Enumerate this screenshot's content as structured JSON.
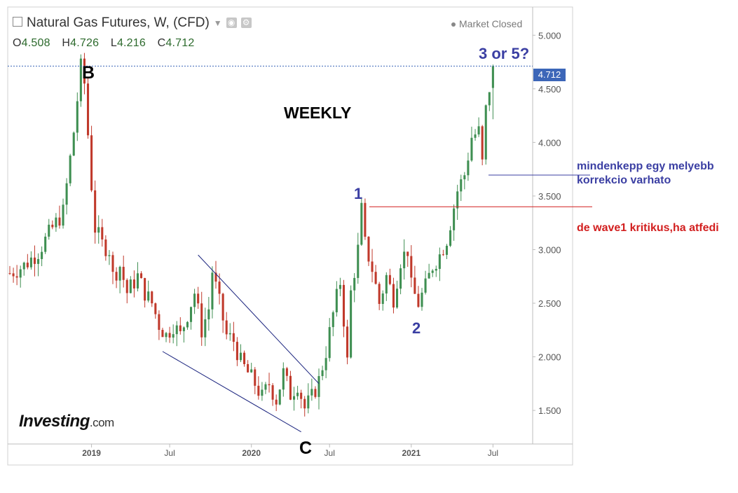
{
  "header": {
    "title": "Natural Gas Futures, W, (CFD)",
    "ohlc": [
      {
        "label": "O",
        "value": "4.508"
      },
      {
        "label": "H",
        "value": "4.726"
      },
      {
        "label": "L",
        "value": "4.216"
      },
      {
        "label": "C",
        "value": "4.712"
      }
    ],
    "market_status": "Market Closed",
    "icons": [
      "square-icon",
      "chevron-down-icon",
      "eye-icon",
      "gear-icon"
    ]
  },
  "brand": {
    "name": "Investing",
    "suffix": ".com"
  },
  "last_price_tag": "4.712",
  "annotations": {
    "weekly": "WEEKLY",
    "b": "B",
    "c": "C",
    "wave1": "1",
    "wave2": "2",
    "wave3or5": "3 or 5?",
    "note_blue_line1": "mindenkepp egy melyebb",
    "note_blue_line2": "korrekcio varhato",
    "note_red": "de wave1 kritikus,ha atfedi"
  },
  "colors": {
    "up": "#3f8f52",
    "down": "#c0392b",
    "last_price_line": "#3c66b8",
    "annotation_blue": "#3b3fa3",
    "annotation_red": "#d21f1f",
    "axis_text": "#555555"
  },
  "chart_data": {
    "type": "candlestick",
    "title": "Natural Gas Futures, W, (CFD)",
    "interval": "weekly",
    "x_tick_labels": [
      "2019",
      "Jul",
      "2020",
      "Jul",
      "2021",
      "Jul"
    ],
    "y_tick_labels": [
      "1.500",
      "2.000",
      "2.500",
      "3.000",
      "3.500",
      "4.000",
      "4.500",
      "5.000"
    ],
    "ylim": [
      1.2,
      5.25
    ],
    "xlim": [
      0,
      145
    ],
    "last_price": 4.712,
    "ohlc_last": {
      "open": 4.508,
      "high": 4.726,
      "low": 4.216,
      "close": 4.712
    },
    "close_path": [
      [
        0,
        2.78
      ],
      [
        4,
        2.85
      ],
      [
        8,
        2.98
      ],
      [
        12,
        3.2
      ],
      [
        15,
        3.35
      ],
      [
        18,
        4.1
      ],
      [
        20,
        4.7
      ],
      [
        21,
        4.55
      ],
      [
        23,
        3.6
      ],
      [
        24,
        3.2
      ],
      [
        26,
        3.05
      ],
      [
        28,
        3.0
      ],
      [
        29,
        2.75
      ],
      [
        31,
        2.85
      ],
      [
        33,
        2.6
      ],
      [
        36,
        2.75
      ],
      [
        38,
        2.6
      ],
      [
        40,
        2.5
      ],
      [
        42,
        2.3
      ],
      [
        44,
        2.2
      ],
      [
        46,
        2.3
      ],
      [
        48,
        2.2
      ],
      [
        50,
        2.4
      ],
      [
        52,
        2.6
      ],
      [
        54,
        2.25
      ],
      [
        56,
        2.45
      ],
      [
        57,
        2.8
      ],
      [
        59,
        2.5
      ],
      [
        61,
        2.2
      ],
      [
        63,
        2.15
      ],
      [
        65,
        1.95
      ],
      [
        67,
        1.85
      ],
      [
        69,
        1.75
      ],
      [
        71,
        1.62
      ],
      [
        73,
        1.75
      ],
      [
        75,
        1.6
      ],
      [
        77,
        1.85
      ],
      [
        79,
        1.65
      ],
      [
        81,
        1.75
      ],
      [
        83,
        1.52
      ],
      [
        85,
        1.62
      ],
      [
        87,
        1.78
      ],
      [
        89,
        2.05
      ],
      [
        91,
        2.4
      ],
      [
        93,
        2.7
      ],
      [
        94,
        2.35
      ],
      [
        95,
        1.95
      ],
      [
        96,
        2.6
      ],
      [
        98,
        3.0
      ],
      [
        99,
        3.37
      ],
      [
        100,
        3.05
      ],
      [
        102,
        2.82
      ],
      [
        104,
        2.5
      ],
      [
        106,
        2.75
      ],
      [
        108,
        2.55
      ],
      [
        110,
        2.9
      ],
      [
        112,
        3.0
      ],
      [
        113,
        2.65
      ],
      [
        115,
        2.5
      ],
      [
        117,
        2.65
      ],
      [
        119,
        2.85
      ],
      [
        121,
        2.95
      ],
      [
        123,
        3.1
      ],
      [
        125,
        3.4
      ],
      [
        126,
        3.55
      ],
      [
        128,
        3.7
      ],
      [
        130,
        4.05
      ],
      [
        132,
        4.1
      ],
      [
        133,
        3.8
      ],
      [
        134,
        4.3
      ],
      [
        135,
        4.508
      ],
      [
        136,
        4.712
      ]
    ],
    "annotations": [
      {
        "label": "B",
        "x": 21,
        "y": 4.85
      },
      {
        "label": "C",
        "x": 84,
        "y": 1.3
      },
      {
        "label": "1",
        "x": 99,
        "y": 3.5
      },
      {
        "label": "2",
        "x": 114,
        "y": 2.3
      },
      {
        "label": "3 or 5?",
        "x": 136,
        "y": 4.9
      }
    ],
    "horizontal_levels": [
      {
        "value": 4.712,
        "style": "dotted",
        "label": "4.712"
      },
      {
        "value": 3.4,
        "style": "solid",
        "color": "red"
      }
    ],
    "trendlines": [
      {
        "from": [
          53,
          2.95
        ],
        "to": [
          87,
          1.75
        ]
      },
      {
        "from": [
          43,
          2.05
        ],
        "to": [
          82,
          1.3
        ]
      }
    ]
  }
}
